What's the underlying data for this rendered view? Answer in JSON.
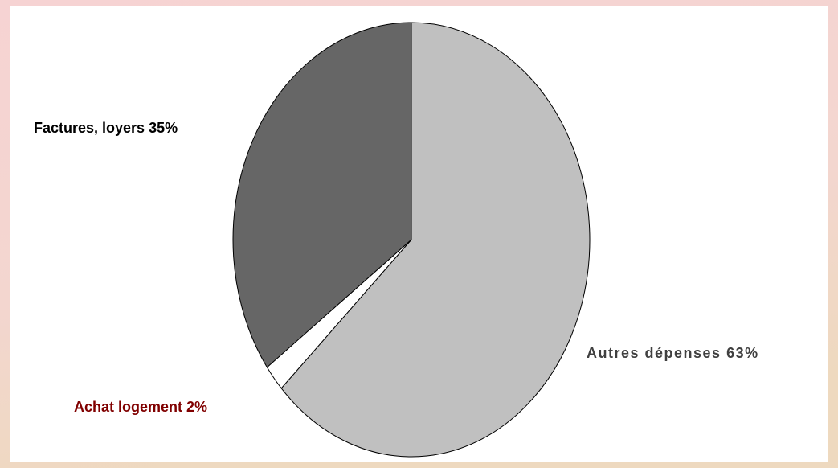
{
  "chart_data": {
    "type": "pie",
    "categories": [
      "Autres dépenses",
      "Achat logement",
      "Factures, loyers"
    ],
    "values": [
      63,
      2,
      35
    ],
    "value_labels": [
      "63%",
      "2%",
      "35%"
    ],
    "colors": [
      "#c0c0c0",
      "#ffffff",
      "#666666"
    ],
    "label_colors": [
      "#404040",
      "#800000",
      "#000000"
    ]
  }
}
